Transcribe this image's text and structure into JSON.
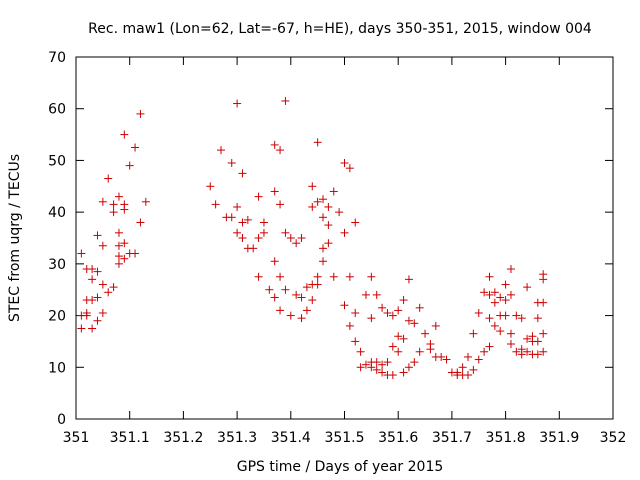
{
  "chart_data": {
    "type": "scatter",
    "title": "Rec. maw1 (Lon=62, Lat=-67, h=HE), days 350-351, 2015, window 004",
    "xlabel": "GPS time / Days of year 2015",
    "ylabel": "STEC from uqrg / TECUs",
    "xlim": [
      351,
      352
    ],
    "ylim": [
      0,
      70
    ],
    "x_ticks": [
      "351",
      "351.1",
      "351.2",
      "351.3",
      "351.4",
      "351.5",
      "351.6",
      "351.7",
      "351.8",
      "351.9",
      "352"
    ],
    "y_ticks": [
      "0",
      "10",
      "20",
      "30",
      "40",
      "50",
      "60",
      "70"
    ],
    "grid": false,
    "marker": "+",
    "marker_color": "#cc0000",
    "series": [
      {
        "points": [
          [
            351.01,
            32.0
          ],
          [
            351.01,
            20.0
          ],
          [
            351.01,
            17.5
          ],
          [
            351.02,
            20.0
          ],
          [
            351.02,
            29.0
          ],
          [
            351.02,
            23.0
          ],
          [
            351.02,
            20.5
          ],
          [
            351.03,
            29.0
          ],
          [
            351.03,
            23.0
          ],
          [
            351.03,
            17.5
          ],
          [
            351.03,
            27.0
          ],
          [
            351.04,
            28.5
          ],
          [
            351.04,
            35.5
          ],
          [
            351.04,
            23.5
          ],
          [
            351.04,
            19.0
          ],
          [
            351.05,
            33.5
          ],
          [
            351.05,
            42.0
          ],
          [
            351.05,
            26.0
          ],
          [
            351.05,
            20.5
          ],
          [
            351.06,
            24.5
          ],
          [
            351.06,
            46.5
          ],
          [
            351.07,
            41.5
          ],
          [
            351.07,
            40.0
          ],
          [
            351.07,
            25.5
          ],
          [
            351.08,
            43.0
          ],
          [
            351.08,
            36.0
          ],
          [
            351.08,
            33.5
          ],
          [
            351.08,
            31.5
          ],
          [
            351.08,
            30.0
          ],
          [
            351.09,
            55.0
          ],
          [
            351.09,
            41.5
          ],
          [
            351.09,
            40.5
          ],
          [
            351.09,
            34.0
          ],
          [
            351.09,
            31.0
          ],
          [
            351.1,
            49.0
          ],
          [
            351.1,
            32.0
          ],
          [
            351.11,
            52.5
          ],
          [
            351.11,
            32.0
          ],
          [
            351.12,
            59.0
          ],
          [
            351.12,
            38.0
          ],
          [
            351.13,
            42.0
          ],
          [
            351.25,
            45.0
          ],
          [
            351.26,
            41.5
          ],
          [
            351.27,
            52.0
          ],
          [
            351.28,
            39.0
          ],
          [
            351.29,
            49.5
          ],
          [
            351.29,
            39.0
          ],
          [
            351.3,
            61.0
          ],
          [
            351.3,
            41.0
          ],
          [
            351.3,
            36.0
          ],
          [
            351.31,
            47.5
          ],
          [
            351.31,
            38.0
          ],
          [
            351.31,
            35.0
          ],
          [
            351.32,
            38.5
          ],
          [
            351.32,
            33.0
          ],
          [
            351.33,
            33.0
          ],
          [
            351.34,
            43.0
          ],
          [
            351.34,
            35.0
          ],
          [
            351.34,
            27.5
          ],
          [
            351.35,
            38.0
          ],
          [
            351.35,
            36.0
          ],
          [
            351.36,
            25.0
          ],
          [
            351.37,
            53.0
          ],
          [
            351.37,
            44.0
          ],
          [
            351.37,
            30.5
          ],
          [
            351.37,
            23.5
          ],
          [
            351.38,
            52.0
          ],
          [
            351.38,
            41.5
          ],
          [
            351.38,
            27.5
          ],
          [
            351.38,
            21.0
          ],
          [
            351.39,
            61.5
          ],
          [
            351.39,
            36.0
          ],
          [
            351.39,
            25.0
          ],
          [
            351.4,
            35.0
          ],
          [
            351.4,
            20.0
          ],
          [
            351.41,
            34.0
          ],
          [
            351.41,
            24.0
          ],
          [
            351.42,
            19.5
          ],
          [
            351.42,
            35.0
          ],
          [
            351.42,
            23.5
          ],
          [
            351.43,
            21.0
          ],
          [
            351.43,
            25.5
          ],
          [
            351.44,
            45.0
          ],
          [
            351.44,
            41.0
          ],
          [
            351.44,
            26.0
          ],
          [
            351.44,
            23.0
          ],
          [
            351.45,
            53.5
          ],
          [
            351.45,
            42.0
          ],
          [
            351.45,
            27.5
          ],
          [
            351.45,
            26.0
          ],
          [
            351.46,
            42.5
          ],
          [
            351.46,
            39.0
          ],
          [
            351.46,
            33.0
          ],
          [
            351.46,
            30.5
          ],
          [
            351.47,
            41.0
          ],
          [
            351.47,
            37.5
          ],
          [
            351.47,
            34.0
          ],
          [
            351.48,
            44.0
          ],
          [
            351.48,
            27.5
          ],
          [
            351.49,
            40.0
          ],
          [
            351.5,
            49.5
          ],
          [
            351.5,
            36.0
          ],
          [
            351.5,
            22.0
          ],
          [
            351.51,
            48.5
          ],
          [
            351.51,
            27.5
          ],
          [
            351.51,
            18.0
          ],
          [
            351.52,
            38.0
          ],
          [
            351.52,
            20.5
          ],
          [
            351.52,
            15.0
          ],
          [
            351.53,
            13.0
          ],
          [
            351.53,
            10.0
          ],
          [
            351.54,
            24.0
          ],
          [
            351.54,
            10.5
          ],
          [
            351.55,
            27.5
          ],
          [
            351.55,
            19.5
          ],
          [
            351.55,
            11.0
          ],
          [
            351.55,
            10.0
          ],
          [
            351.56,
            24.0
          ],
          [
            351.56,
            11.0
          ],
          [
            351.56,
            9.5
          ],
          [
            351.57,
            21.5
          ],
          [
            351.57,
            10.5
          ],
          [
            351.57,
            9.0
          ],
          [
            351.58,
            20.5
          ],
          [
            351.58,
            11.0
          ],
          [
            351.58,
            8.5
          ],
          [
            351.59,
            20.0
          ],
          [
            351.59,
            14.0
          ],
          [
            351.59,
            8.5
          ],
          [
            351.6,
            21.0
          ],
          [
            351.6,
            16.0
          ],
          [
            351.6,
            13.0
          ],
          [
            351.61,
            23.0
          ],
          [
            351.61,
            15.5
          ],
          [
            351.61,
            9.0
          ],
          [
            351.62,
            27.0
          ],
          [
            351.62,
            19.0
          ],
          [
            351.62,
            10.0
          ],
          [
            351.63,
            18.5
          ],
          [
            351.63,
            11.0
          ],
          [
            351.64,
            21.5
          ],
          [
            351.64,
            13.0
          ],
          [
            351.65,
            16.5
          ],
          [
            351.66,
            14.5
          ],
          [
            351.66,
            13.5
          ],
          [
            351.67,
            18.0
          ],
          [
            351.67,
            12.0
          ],
          [
            351.68,
            12.0
          ],
          [
            351.69,
            11.5
          ],
          [
            351.7,
            9.0
          ],
          [
            351.71,
            9.0
          ],
          [
            351.71,
            8.5
          ],
          [
            351.72,
            10.0
          ],
          [
            351.72,
            8.5
          ],
          [
            351.73,
            12.0
          ],
          [
            351.73,
            8.5
          ],
          [
            351.74,
            16.5
          ],
          [
            351.74,
            9.5
          ],
          [
            351.75,
            20.5
          ],
          [
            351.75,
            11.5
          ],
          [
            351.76,
            24.5
          ],
          [
            351.76,
            13.0
          ],
          [
            351.77,
            27.5
          ],
          [
            351.77,
            24.0
          ],
          [
            351.77,
            19.5
          ],
          [
            351.77,
            14.0
          ],
          [
            351.78,
            24.5
          ],
          [
            351.78,
            22.5
          ],
          [
            351.78,
            18.0
          ],
          [
            351.79,
            23.5
          ],
          [
            351.79,
            20.0
          ],
          [
            351.79,
            17.0
          ],
          [
            351.8,
            26.0
          ],
          [
            351.8,
            23.0
          ],
          [
            351.8,
            20.0
          ],
          [
            351.81,
            29.0
          ],
          [
            351.81,
            24.0
          ],
          [
            351.81,
            16.5
          ],
          [
            351.81,
            14.5
          ],
          [
            351.82,
            20.0
          ],
          [
            351.82,
            13.0
          ],
          [
            351.83,
            19.5
          ],
          [
            351.83,
            13.5
          ],
          [
            351.83,
            12.5
          ],
          [
            351.84,
            25.5
          ],
          [
            351.84,
            15.5
          ],
          [
            351.84,
            13.0
          ],
          [
            351.85,
            16.0
          ],
          [
            351.85,
            15.0
          ],
          [
            351.85,
            12.5
          ],
          [
            351.86,
            22.5
          ],
          [
            351.86,
            19.5
          ],
          [
            351.86,
            15.0
          ],
          [
            351.86,
            12.5
          ],
          [
            351.87,
            28.0
          ],
          [
            351.87,
            27.0
          ],
          [
            351.87,
            22.5
          ],
          [
            351.87,
            16.5
          ],
          [
            351.87,
            13.0
          ]
        ]
      }
    ]
  }
}
